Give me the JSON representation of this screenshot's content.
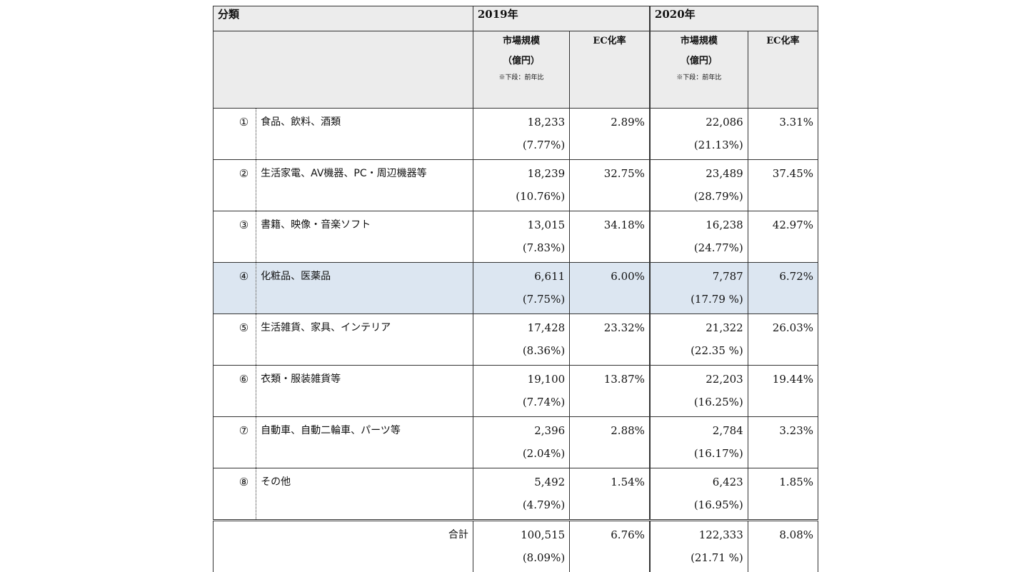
{
  "header": {
    "category_label": "分類",
    "year_2019": "2019年",
    "year_2020": "2020年",
    "market_size_label": "市場規模",
    "unit_label": "（億円）",
    "note_label": "※下段：前年比",
    "ec_rate_label": "EC化率"
  },
  "rows": [
    {
      "num": "①",
      "category": "食品、飲料、酒類",
      "ms_2019": "18,233",
      "yoy_2019": "(7.77%)",
      "ec_2019": "2.89%",
      "ms_2020": "22,086",
      "yoy_2020": "(21.13%)",
      "ec_2020": "3.31%"
    },
    {
      "num": "②",
      "category": "生活家電、AV機器、PC・周辺機器等",
      "ms_2019": "18,239",
      "yoy_2019": "(10.76%)",
      "ec_2019": "32.75%",
      "ms_2020": "23,489",
      "yoy_2020": "(28.79%)",
      "ec_2020": "37.45%"
    },
    {
      "num": "③",
      "category": "書籍、映像・音楽ソフト",
      "ms_2019": "13,015",
      "yoy_2019": "(7.83%)",
      "ec_2019": "34.18%",
      "ms_2020": "16,238",
      "yoy_2020": "(24.77%)",
      "ec_2020": "42.97%"
    },
    {
      "num": "④",
      "category": "化粧品、医薬品",
      "ms_2019": "6,611",
      "yoy_2019": "(7.75%)",
      "ec_2019": "6.00%",
      "ms_2020": "7,787",
      "yoy_2020": "(17.79 %)",
      "ec_2020": "6.72%"
    },
    {
      "num": "⑤",
      "category": "生活雑貨、家具、インテリア",
      "ms_2019": "17,428",
      "yoy_2019": "(8.36%)",
      "ec_2019": "23.32%",
      "ms_2020": "21,322",
      "yoy_2020": "(22.35 %)",
      "ec_2020": "26.03%"
    },
    {
      "num": "⑥",
      "category": "衣類・服装雑貨等",
      "ms_2019": "19,100",
      "yoy_2019": "(7.74%)",
      "ec_2019": "13.87%",
      "ms_2020": "22,203",
      "yoy_2020": "(16.25%)",
      "ec_2020": "19.44%"
    },
    {
      "num": "⑦",
      "category": "自動車、自動二輪車、パーツ等",
      "ms_2019": "2,396",
      "yoy_2019": "(2.04%)",
      "ec_2019": "2.88%",
      "ms_2020": "2,784",
      "yoy_2020": "(16.17%)",
      "ec_2020": "3.23%"
    },
    {
      "num": "⑧",
      "category": "その他",
      "ms_2019": "5,492",
      "yoy_2019": "(4.79%)",
      "ec_2019": "1.54%",
      "ms_2020": "6,423",
      "yoy_2020": "(16.95%)",
      "ec_2020": "1.85%"
    }
  ],
  "total": {
    "label": "合計",
    "ms_2019": "100,515",
    "yoy_2019": "(8.09%)",
    "ec_2019": "6.76%",
    "ms_2020": "122,333",
    "yoy_2020": "(21.71 %)",
    "ec_2020": "8.08%"
  },
  "highlight_row_index": 3,
  "colors": {
    "highlight": "#dce6f1",
    "header_bg": "#ececec"
  }
}
